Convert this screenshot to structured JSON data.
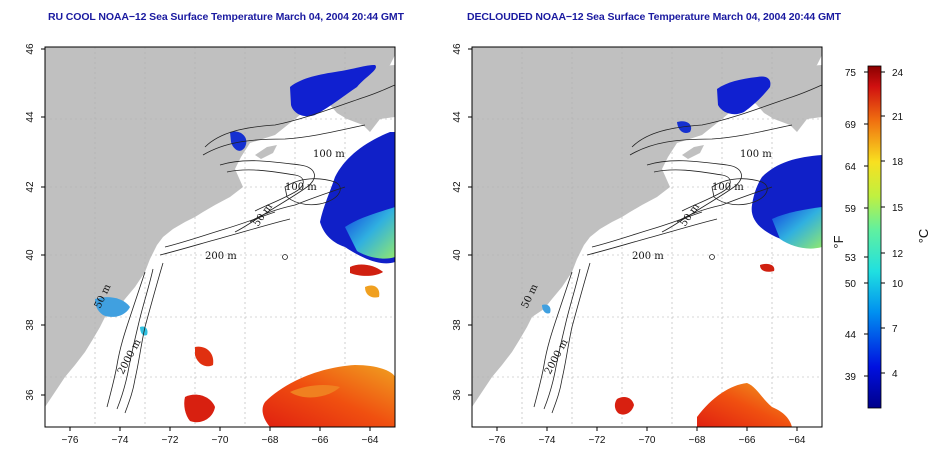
{
  "titles": {
    "left": "RU COOL NOAA−12 Sea Surface Temperature March 04, 2004 20:44 GMT",
    "right": "DECLOUDED NOAA−12 Sea Surface Temperature March 04, 2004 20:44 GMT"
  },
  "axes": {
    "lon_ticks": [
      "−76",
      "−74",
      "−72",
      "−70",
      "−68",
      "−66",
      "−64"
    ],
    "lat_ticks": [
      "36",
      "38",
      "40",
      "42",
      "44",
      "46"
    ]
  },
  "contour_labels": [
    "100 m",
    "100 m",
    "50 m",
    "200 m",
    "2000 m",
    "50 m"
  ],
  "colorbar": {
    "f_label": "°F",
    "c_label": "°C",
    "f_ticks": [
      "75",
      "69",
      "64",
      "59",
      "53",
      "50",
      "44",
      "39"
    ],
    "c_ticks": [
      "24",
      "21",
      "18",
      "15",
      "12",
      "10",
      "7",
      "4"
    ]
  },
  "colors": {
    "land": "#c0c0c0",
    "title": "#1a1aa0",
    "cold": "#0a14c8",
    "mid": "#38c8d8",
    "warm": "#e04010"
  }
}
